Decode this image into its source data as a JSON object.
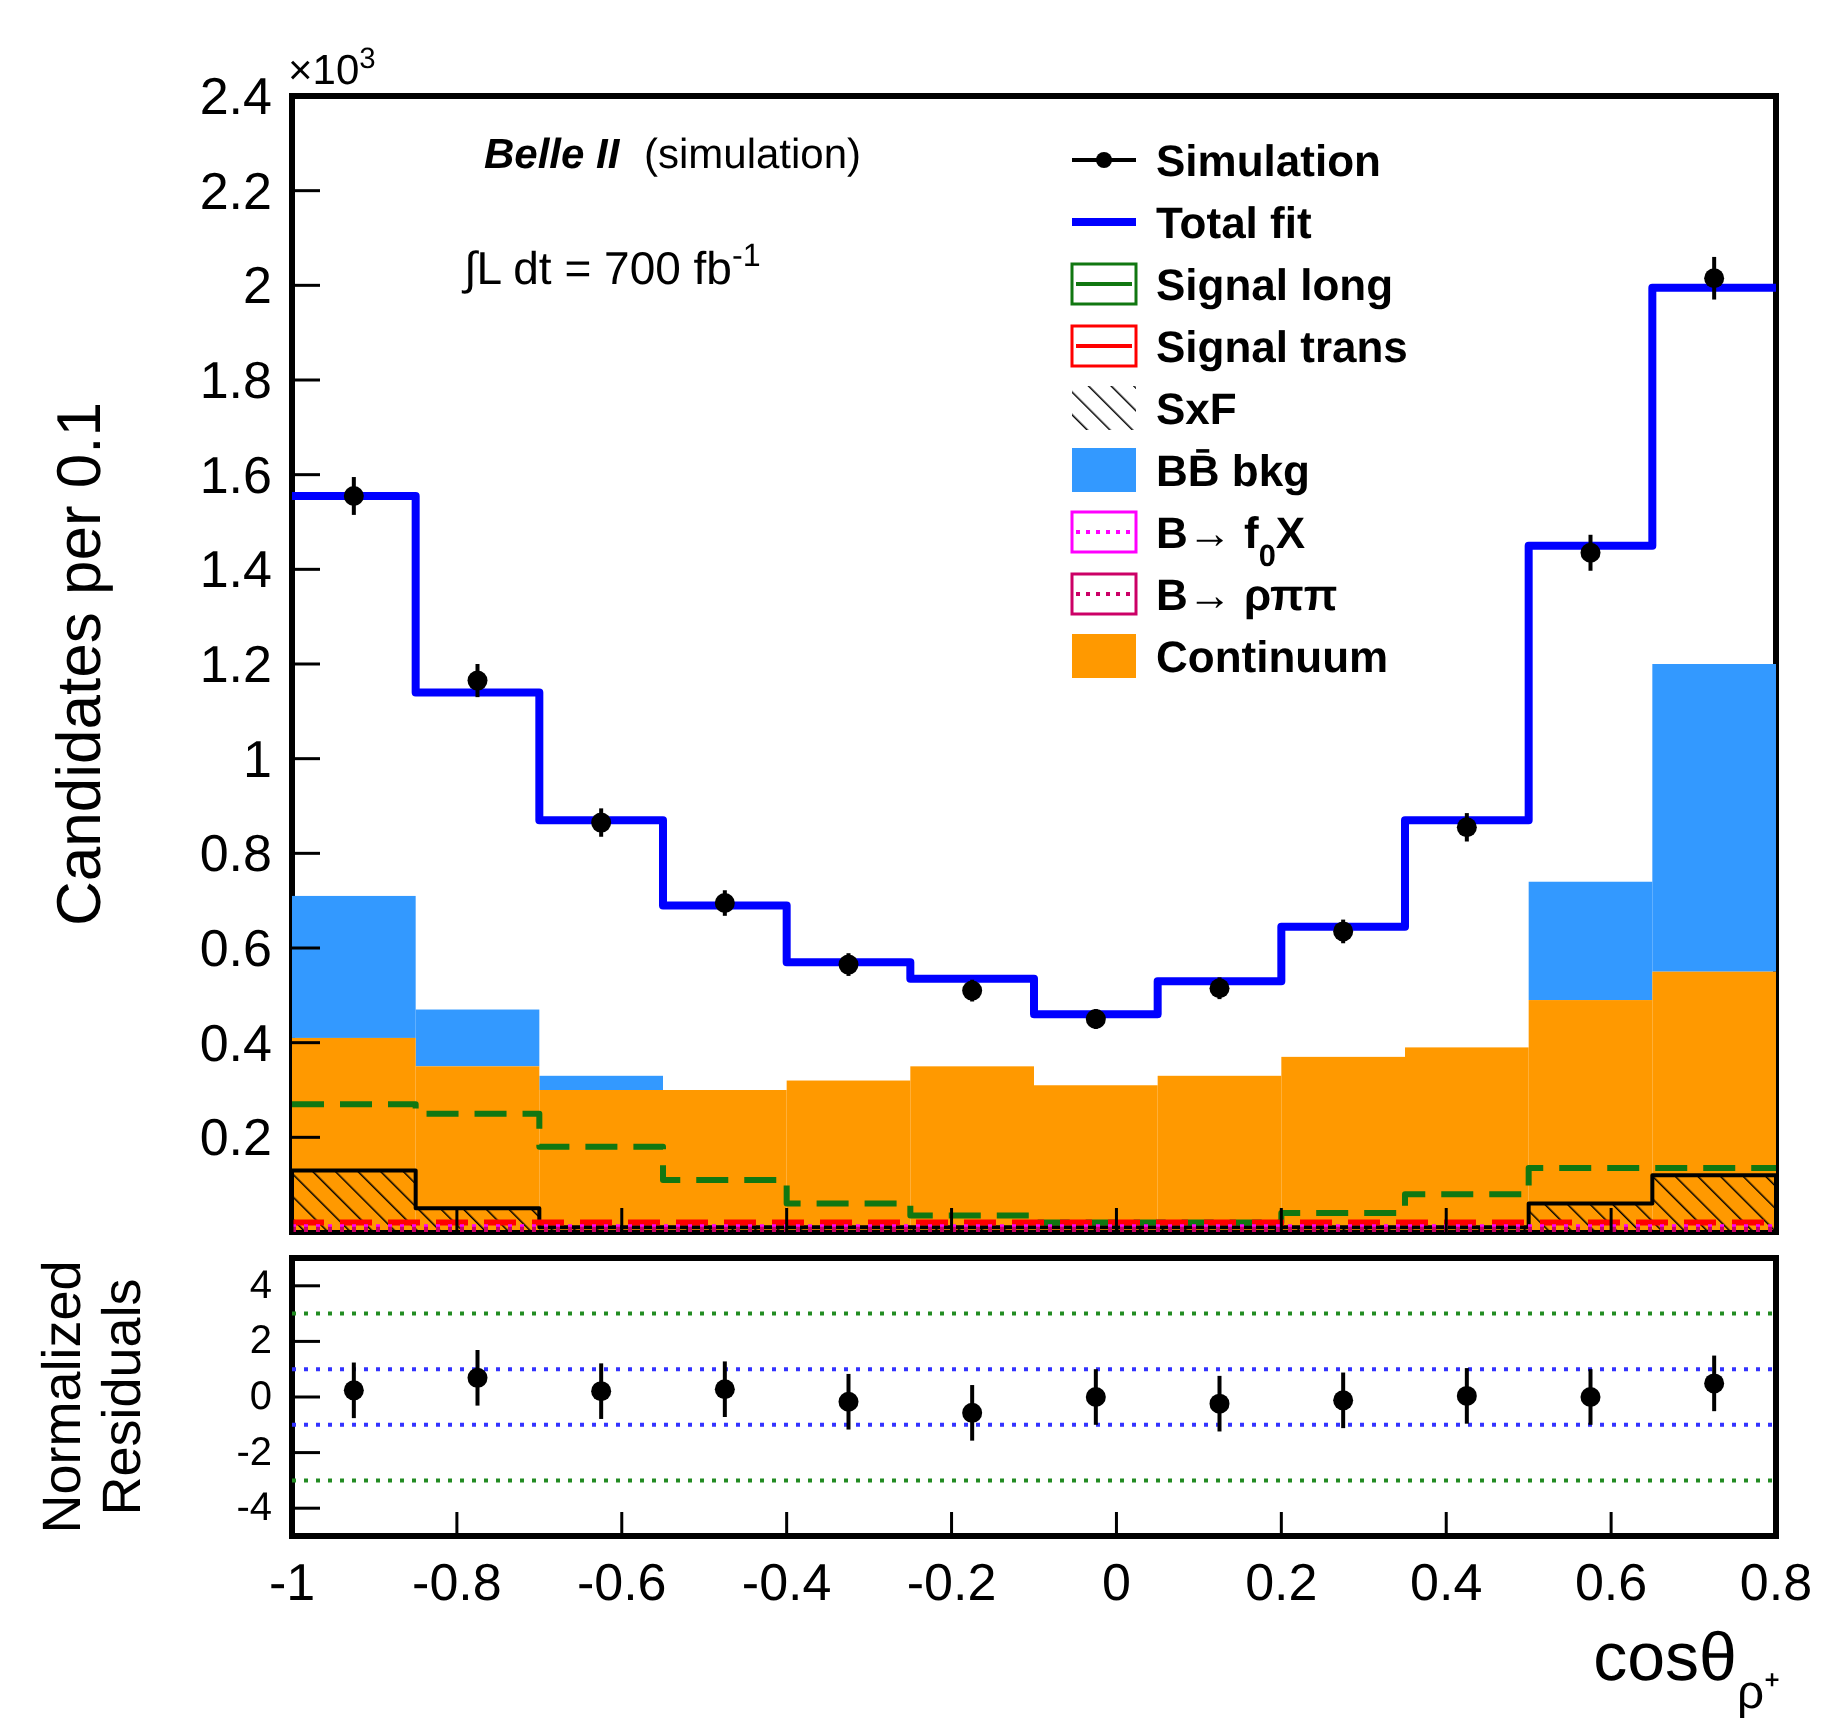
{
  "chart_data": [
    {
      "type": "histogram",
      "ylabel": "Candidates per 0.1",
      "annotations": [
        "×10$^{3}$",
        "Belle II",
        "(simulation)",
        "∫L dt = 700 fb$^{-1}$"
      ],
      "bins": [
        -1,
        -0.85,
        -0.7,
        -0.55,
        -0.4,
        -0.25,
        -0.1,
        0.05,
        0.2,
        0.35,
        0.5,
        0.65,
        0.8
      ],
      "xlim": [
        -1,
        0.8
      ],
      "xticks": [
        -1,
        -0.8,
        -0.6,
        -0.4,
        -0.2,
        0,
        0.2,
        0.4,
        0.6,
        0.8
      ],
      "ylim": [
        0,
        2.4
      ],
      "yticks": [
        0.2,
        0.4,
        0.6,
        0.8,
        1,
        1.2,
        1.4,
        1.6,
        1.8,
        2,
        2.2,
        2.4
      ],
      "tick_labels": "y",
      "legend": "top right",
      "series": [
        {
          "name": "Simulation",
          "type": "scatter",
          "marker": "circle",
          "color": "#000000",
          "x": [
            -0.925,
            -0.775,
            -0.625,
            -0.475,
            -0.325,
            -0.175,
            -0.025,
            0.125,
            0.275,
            0.425,
            0.575,
            0.725
          ],
          "values": [
            1.555,
            1.165,
            0.865,
            0.695,
            0.565,
            0.51,
            0.45,
            0.515,
            0.635,
            0.855,
            1.435,
            2.015
          ],
          "errors": [
            0.04,
            0.035,
            0.03,
            0.027,
            0.024,
            0.023,
            0.021,
            0.023,
            0.025,
            0.03,
            0.038,
            0.045
          ]
        },
        {
          "name": "Total fit",
          "type": "step",
          "line_style": "solid",
          "color": "#0000ff",
          "x": [
            -1,
            -0.85,
            -0.7,
            -0.55,
            -0.4,
            -0.25,
            -0.1,
            0.05,
            0.2,
            0.35,
            0.5,
            0.65,
            0.8
          ],
          "values": [
            1.555,
            1.14,
            0.87,
            0.69,
            0.57,
            0.535,
            0.46,
            0.53,
            0.645,
            0.87,
            1.45,
            1.995,
            1.995
          ]
        },
        {
          "name": "Signal long",
          "type": "step",
          "line_style": "dashed",
          "color": "#117711",
          "x": [
            -1,
            -0.85,
            -0.7,
            -0.55,
            -0.4,
            -0.25,
            -0.1,
            0.05,
            0.2,
            0.35,
            0.5,
            0.65,
            0.8
          ],
          "values": [
            0.27,
            0.25,
            0.18,
            0.11,
            0.06,
            0.035,
            0.02,
            0.02,
            0.04,
            0.08,
            0.135,
            0.135,
            0.135
          ]
        },
        {
          "name": "Signal trans",
          "type": "step",
          "line_style": "dashed",
          "color": "#ff0000",
          "x": [
            -1,
            -0.85,
            -0.7,
            -0.55,
            -0.4,
            -0.25,
            -0.1,
            0.05,
            0.2,
            0.35,
            0.5,
            0.65,
            0.8
          ],
          "values": [
            0.02,
            0.02,
            0.02,
            0.02,
            0.02,
            0.02,
            0.02,
            0.02,
            0.02,
            0.02,
            0.02,
            0.02,
            0.02
          ]
        },
        {
          "name": "SxF",
          "type": "area",
          "color": "#000000",
          "x": [
            -1,
            -0.85,
            -0.7,
            -0.55,
            -0.4,
            -0.25,
            -0.1,
            0.05,
            0.2,
            0.35,
            0.5,
            0.65,
            0.8
          ],
          "values": [
            0.13,
            0.05,
            0.01,
            0.01,
            0.01,
            0.01,
            0.01,
            0.01,
            0.01,
            0.01,
            0.06,
            0.12,
            0.12
          ]
        },
        {
          "name": "BB̄ bkg",
          "color": "#3399ff",
          "base": [
            0.41,
            0.35,
            0.3,
            null,
            null,
            null,
            null,
            null,
            null,
            null,
            0.49,
            0.55
          ],
          "values": [
            0.3,
            0.12,
            0.03,
            null,
            null,
            null,
            null,
            null,
            null,
            null,
            0.25,
            0.65
          ]
        },
        {
          "name": "B→ f$_{0}$X",
          "type": "step",
          "line_style": "dotted",
          "color": "#ff00ff",
          "x": [
            -1,
            -0.85,
            -0.7,
            -0.55,
            -0.4,
            -0.25,
            -0.1,
            0.05,
            0.2,
            0.35,
            0.5,
            0.65,
            0.8
          ],
          "values": [
            0.01,
            0.01,
            0.01,
            0.01,
            0.01,
            0.01,
            0.01,
            0.01,
            0.01,
            0.01,
            0.01,
            0.01,
            0.01
          ]
        },
        {
          "name": "B→ ρππ",
          "type": "step",
          "line_style": "dotted",
          "color": "#cc0066",
          "x": [
            -1,
            -0.85,
            -0.7,
            -0.55,
            -0.4,
            -0.25,
            -0.1,
            0.05,
            0.2,
            0.35,
            0.5,
            0.65,
            0.8
          ],
          "values": [
            0.005,
            0.005,
            0.005,
            0.005,
            0.005,
            0.005,
            0.005,
            0.005,
            0.005,
            0.005,
            0.005,
            0.005,
            0.005
          ]
        },
        {
          "name": "Continuum",
          "color": "#ff9900",
          "values": [
            0.41,
            0.35,
            0.3,
            0.3,
            0.32,
            0.35,
            0.31,
            0.33,
            0.37,
            0.39,
            0.49,
            0.55
          ]
        }
      ]
    },
    {
      "type": "scatter",
      "xlabel": "cosθ$_{ρ⁺}$",
      "ylabel": "Normalized Residuals",
      "marker": "circle",
      "color": "#000000",
      "x": [
        -0.925,
        -0.775,
        -0.625,
        -0.475,
        -0.325,
        -0.175,
        -0.025,
        0.125,
        0.275,
        0.425,
        0.575,
        0.725
      ],
      "values": [
        0.24,
        0.69,
        0.21,
        0.28,
        -0.17,
        -0.57,
        0,
        -0.24,
        -0.12,
        0.04,
        0,
        0.49
      ],
      "errors": [
        1,
        1,
        1,
        1,
        1,
        1,
        1,
        1,
        1,
        1,
        1,
        1
      ],
      "xlim": [
        -1,
        0.8
      ],
      "xticks": [
        -1,
        -0.8,
        -0.6,
        -0.4,
        -0.2,
        0,
        0.2,
        0.4,
        0.6,
        0.8
      ],
      "ylim": [
        -5,
        5
      ],
      "yticks": [
        -4,
        -2,
        0,
        2,
        4
      ],
      "ref_lines": [
        {
          "axis": "y",
          "value": 3,
          "color": "#228b22",
          "line_style": "dotted"
        },
        {
          "axis": "y",
          "value": 1,
          "color": "#3333ff",
          "line_style": "dotted"
        },
        {
          "axis": "y",
          "value": -1,
          "color": "#3333ff",
          "line_style": "dotted"
        },
        {
          "axis": "y",
          "value": -3,
          "color": "#228b22",
          "line_style": "dotted"
        }
      ]
    }
  ]
}
